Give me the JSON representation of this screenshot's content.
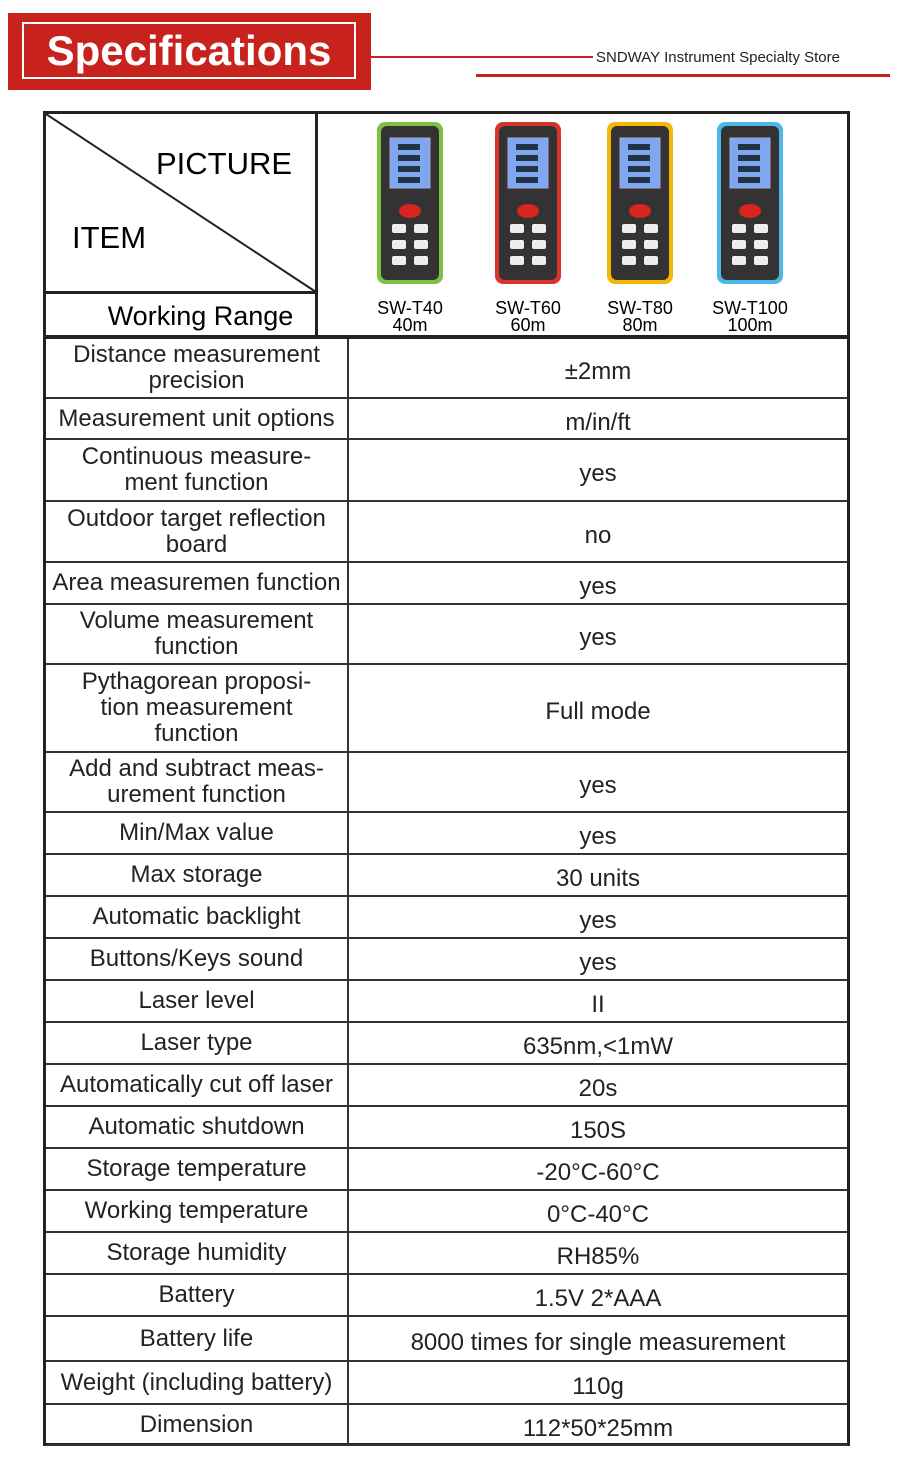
{
  "header": {
    "title": "Specifications",
    "store": "SNDWAY Instrument Specialty Store"
  },
  "table": {
    "corner_top": "PICTURE",
    "corner_bottom": "ITEM",
    "range_label": "Working Range",
    "models": [
      {
        "name": "SW-T40",
        "range": "40m"
      },
      {
        "name": "SW-T60",
        "range": "60m"
      },
      {
        "name": "SW-T80",
        "range": "80m"
      },
      {
        "name": "SW-T100",
        "range": "100m"
      }
    ],
    "rows": [
      [
        "Distance measurement\nprecision",
        "±2mm"
      ],
      [
        "Measurement unit options",
        "m/in/ft"
      ],
      [
        "Continuous measure-\nment function",
        "yes"
      ],
      [
        "Outdoor target reflection\nboard",
        "no"
      ],
      [
        "Area measuremen function",
        "yes"
      ],
      [
        "Volume measurement\nfunction",
        "yes"
      ],
      [
        "Pythagorean proposi-\ntion measurement\nfunction",
        "Full mode"
      ],
      [
        "Add and subtract meas-\nurement function",
        "yes"
      ],
      [
        "Min/Max value",
        "yes"
      ],
      [
        "Max storage",
        "30 units"
      ],
      [
        "Automatic backlight",
        "yes"
      ],
      [
        "Buttons/Keys sound",
        "yes"
      ],
      [
        "Laser level",
        "II"
      ],
      [
        "Laser type",
        "635nm,<1mW"
      ],
      [
        "Automatically cut off laser",
        "20s"
      ],
      [
        "Automatic shutdown",
        "150S"
      ],
      [
        "Storage temperature",
        "-20°C-60°C"
      ],
      [
        "Working temperature",
        "0°C-40°C"
      ],
      [
        "Storage humidity",
        "RH85%"
      ],
      [
        "Battery",
        "1.5V 2*AAA"
      ],
      [
        "Battery life",
        "8000 times for single measurement"
      ],
      [
        "Weight (including battery)",
        "110g"
      ],
      [
        "Dimension",
        "112*50*25mm"
      ]
    ]
  }
}
